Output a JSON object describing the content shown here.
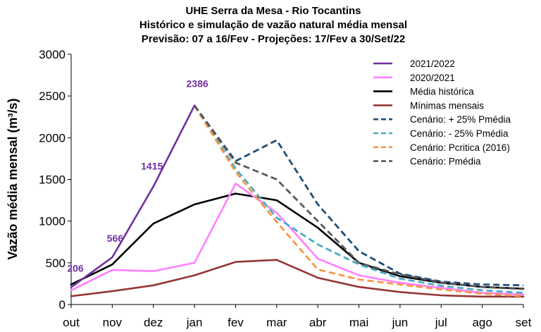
{
  "chart_data": {
    "type": "line",
    "title": [
      "UHE Serra da Mesa - Rio Tocantins",
      "Histórico e simulação de vazão natural média mensal",
      "Previsão: 07 a 16/Fev - Projeções:  17/Fev a 30/Set/22"
    ],
    "xlabel": "",
    "ylabel": "Vazão média mensal (m³/s)",
    "ylim": [
      0,
      3000
    ],
    "yticks": [
      "0",
      "500",
      "1000",
      "1500",
      "2000",
      "2500",
      "3000"
    ],
    "categories": [
      "out",
      "nov",
      "dez",
      "jan",
      "fev",
      "mar",
      "abr",
      "mai",
      "jun",
      "jul",
      "ago",
      "set"
    ],
    "legend_position": "top-right",
    "series": [
      {
        "name": "2021/2022",
        "color": "#7030a0",
        "dash": "solid",
        "values": [
          206,
          566,
          1415,
          2386,
          null,
          null,
          null,
          null,
          null,
          null,
          null,
          null
        ]
      },
      {
        "name": "2020/2021",
        "color": "#ff80ff",
        "dash": "solid",
        "values": [
          170,
          415,
          400,
          500,
          1450,
          1100,
          550,
          350,
          260,
          200,
          140,
          120
        ]
      },
      {
        "name": "Média histórica",
        "color": "#000000",
        "dash": "solid",
        "values": [
          240,
          480,
          970,
          1200,
          1330,
          1250,
          920,
          500,
          340,
          260,
          210,
          190
        ]
      },
      {
        "name": "Mínimas mensais",
        "color": "#943634",
        "dash": "solid",
        "values": [
          100,
          160,
          230,
          350,
          510,
          535,
          320,
          210,
          150,
          110,
          95,
          95
        ]
      },
      {
        "name": "Cenário: + 25% Pmédia",
        "color": "#1f4e79",
        "dash": "dashed",
        "values": [
          null,
          null,
          null,
          2386,
          1720,
          1970,
          1200,
          640,
          370,
          275,
          240,
          230
        ]
      },
      {
        "name": "Cenário: - 25% Pmédia",
        "color": "#4bacc6",
        "dash": "dashed",
        "values": [
          null,
          null,
          null,
          2386,
          1630,
          1040,
          720,
          480,
          310,
          225,
          170,
          140
        ]
      },
      {
        "name": "Cenário: Pcritica (2016)",
        "color": "#f79646",
        "dash": "dashed",
        "values": [
          null,
          null,
          null,
          2386,
          1590,
          990,
          420,
          300,
          240,
          180,
          130,
          100
        ]
      },
      {
        "name": "Cenário: Pmédia",
        "color": "#595959",
        "dash": "dashed",
        "values": [
          null,
          null,
          null,
          2386,
          1700,
          1500,
          1000,
          500,
          360,
          265,
          210,
          185
        ]
      }
    ],
    "data_labels": [
      {
        "series": "2021/2022",
        "category": "out",
        "text": "206",
        "color": "#7030a0"
      },
      {
        "series": "2021/2022",
        "category": "nov",
        "text": "566",
        "color": "#7030a0"
      },
      {
        "series": "2021/2022",
        "category": "dez",
        "text": "1415",
        "color": "#7030a0"
      },
      {
        "series": "2021/2022",
        "category": "jan",
        "text": "2386",
        "color": "#7030a0"
      }
    ]
  }
}
